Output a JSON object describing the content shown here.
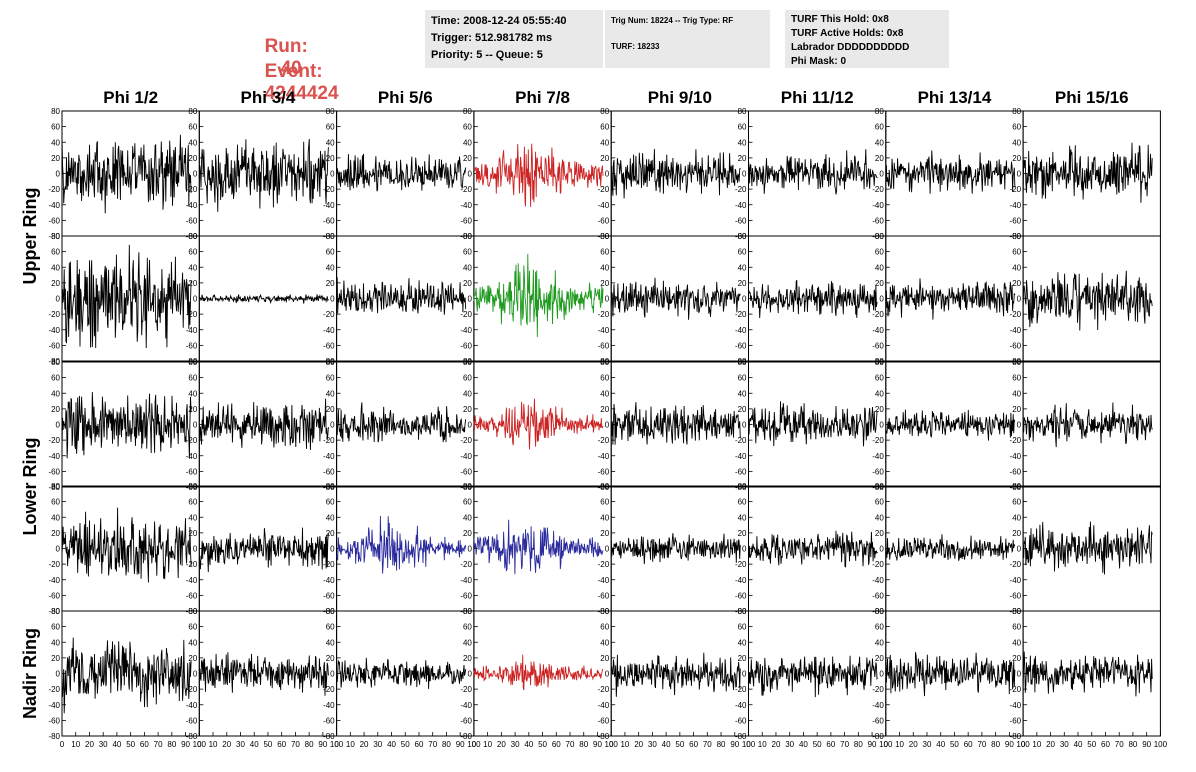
{
  "header": {
    "run_label": "Run:",
    "run_value": "40",
    "event_label": "Event:",
    "event_value": "4244424",
    "time": "Time: 2008-12-24 05:55:40",
    "trigger": "Trigger: 512.981782 ms",
    "priority": "Priority: 5 -- Queue: 5",
    "trig_num": "Trig Num: 18224 -- Trig Type: RF",
    "turf": "TURF: 18233",
    "turf_hold": "TURF This Hold: 0x8",
    "turf_active": "TURF Active Holds: 0x8",
    "labrador": "Labrador DDDDDDDDDD",
    "phi_mask": "Phi Mask: 0"
  },
  "chart_data": {
    "type": "line",
    "columns": [
      "Phi 1/2",
      "Phi 3/4",
      "Phi 5/6",
      "Phi 7/8",
      "Phi 9/10",
      "Phi 11/12",
      "Phi 13/14",
      "Phi 15/16"
    ],
    "ring_labels": [
      {
        "text": "Upper Ring",
        "rows": [
          0,
          1
        ]
      },
      {
        "text": "Lower Ring",
        "rows": [
          2,
          3
        ]
      },
      {
        "text": "Nadir Ring",
        "rows": [
          4,
          4
        ]
      }
    ],
    "xlim": [
      0,
      100
    ],
    "ylim": [
      -80,
      80
    ],
    "x_ticks": [
      "0",
      "10",
      "20",
      "30",
      "40",
      "50",
      "60",
      "70",
      "80",
      "90",
      "100"
    ],
    "y_ticks": [
      "80",
      "60",
      "40",
      "20",
      "0",
      "-20",
      "-40",
      "-60",
      "-80"
    ],
    "y_tick_values": [
      80,
      60,
      40,
      20,
      0,
      -20,
      -40,
      -60,
      -80
    ],
    "grid": false,
    "default_color": "#000000",
    "amplitude": [
      [
        26,
        24,
        14,
        22,
        16,
        14,
        14,
        18
      ],
      [
        34,
        3,
        13,
        22,
        13,
        13,
        13,
        19
      ],
      [
        24,
        17,
        12,
        14,
        15,
        14,
        11,
        13
      ],
      [
        24,
        14,
        18,
        18,
        10,
        12,
        10,
        16
      ],
      [
        24,
        14,
        10,
        10,
        14,
        14,
        14,
        14
      ]
    ],
    "highlighted": [
      {
        "row": 0,
        "col": 3,
        "color": "#cc2222"
      },
      {
        "row": 1,
        "col": 3,
        "color": "#1f9a1f"
      },
      {
        "row": 2,
        "col": 3,
        "color": "#cc2222"
      },
      {
        "row": 3,
        "col": 2,
        "color": "#2b2b9e"
      },
      {
        "row": 3,
        "col": 3,
        "color": "#2b2b9e"
      },
      {
        "row": 4,
        "col": 3,
        "color": "#cc2222"
      }
    ]
  }
}
